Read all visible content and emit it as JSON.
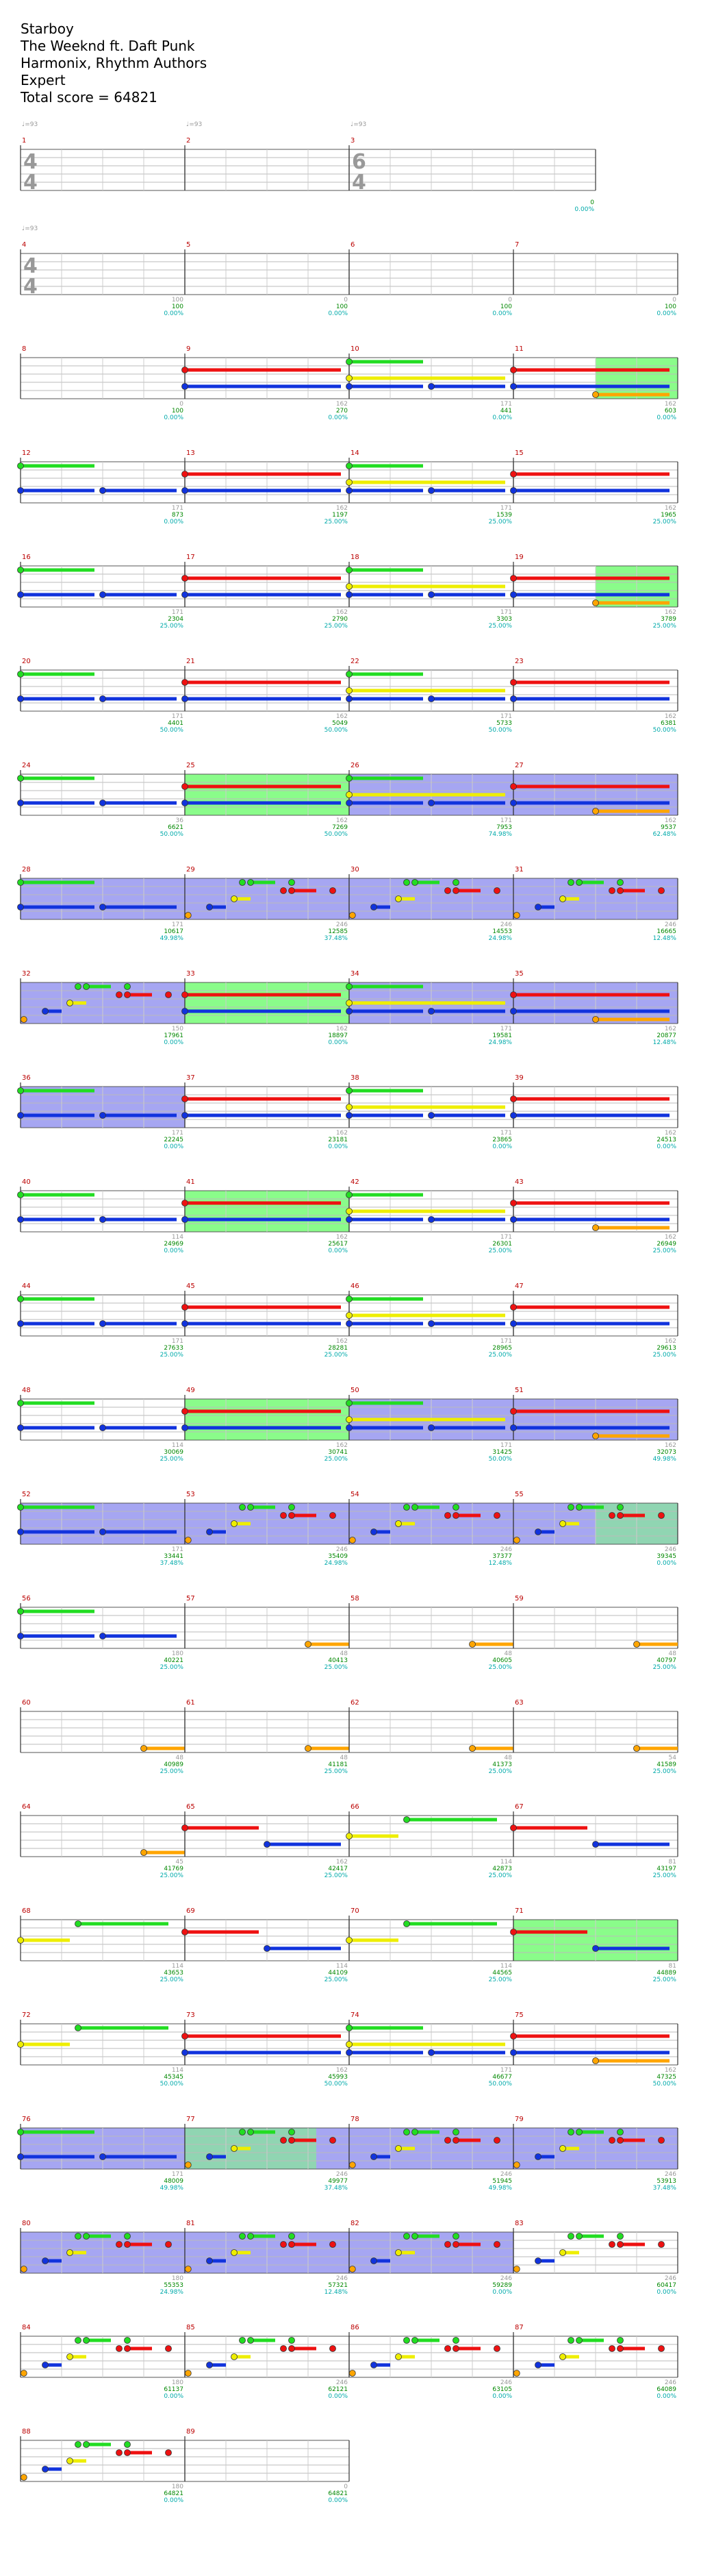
{
  "header": {
    "title": "Starboy",
    "artist": "The Weeknd ft. Daft Punk",
    "charter": "Harmonix, Rhythm Authors",
    "difficulty": "Expert",
    "total_score": "Total score = 64821"
  },
  "tempo_label": "♩=93",
  "tempo_measures": [
    1,
    2,
    3,
    4
  ],
  "time_signatures": [
    {
      "measure": 1,
      "top": "4",
      "bottom": "4"
    },
    {
      "measure": 3,
      "top": "6",
      "bottom": "4"
    },
    {
      "measure": 4,
      "top": "4",
      "bottom": "4"
    }
  ],
  "lane_colors": {
    "green": "#22dd22",
    "red": "#ee1111",
    "yellow": "#eeee00",
    "blue": "#1133dd",
    "orange": "#ffa500",
    "open": "#aa11aa",
    "star_power": "#7dfc7d",
    "solo": "#8888ee",
    "score": "#008800",
    "percent": "#00aaaa",
    "count": "#999999",
    "measure_number": "#bb0000"
  },
  "measures": [
    {
      "n": 1,
      "count": "",
      "score": "",
      "pct": ""
    },
    {
      "n": 2,
      "count": "",
      "score": "",
      "pct": ""
    },
    {
      "n": 3,
      "count": "",
      "score": "0",
      "pct": "0.00%"
    },
    {
      "n": 4,
      "count": "100",
      "score": "100",
      "pct": "0.00%"
    },
    {
      "n": 5,
      "count": "0",
      "score": "100",
      "pct": "0.00%"
    },
    {
      "n": 6,
      "count": "0",
      "score": "100",
      "pct": "0.00%"
    },
    {
      "n": 7,
      "count": "0",
      "score": "100",
      "pct": "0.00%"
    },
    {
      "n": 8,
      "count": "0",
      "score": "100",
      "pct": "0.00%"
    },
    {
      "n": 9,
      "count": "162",
      "score": "270",
      "pct": "0.00%"
    },
    {
      "n": 10,
      "count": "171",
      "score": "441",
      "pct": "0.00%"
    },
    {
      "n": 11,
      "count": "162",
      "score": "603",
      "pct": "0.00%"
    },
    {
      "n": 12,
      "count": "171",
      "score": "873",
      "pct": "0.00%"
    },
    {
      "n": 13,
      "count": "162",
      "score": "1197",
      "pct": "25.00%"
    },
    {
      "n": 14,
      "count": "171",
      "score": "1539",
      "pct": "25.00%"
    },
    {
      "n": 15,
      "count": "162",
      "score": "1965",
      "pct": "25.00%"
    },
    {
      "n": 16,
      "count": "171",
      "score": "2304",
      "pct": "25.00%"
    },
    {
      "n": 17,
      "count": "162",
      "score": "2790",
      "pct": "25.00%"
    },
    {
      "n": 18,
      "count": "171",
      "score": "3303",
      "pct": "25.00%"
    },
    {
      "n": 19,
      "count": "162",
      "score": "3789",
      "pct": "25.00%"
    },
    {
      "n": 20,
      "count": "171",
      "score": "4401",
      "pct": "50.00%"
    },
    {
      "n": 21,
      "count": "162",
      "score": "5049",
      "pct": "50.00%"
    },
    {
      "n": 22,
      "count": "171",
      "score": "5733",
      "pct": "50.00%"
    },
    {
      "n": 23,
      "count": "162",
      "score": "6381",
      "pct": "50.00%"
    },
    {
      "n": 24,
      "count": "36",
      "score": "6621",
      "pct": "50.00%"
    },
    {
      "n": 25,
      "count": "162",
      "score": "7269",
      "pct": "50.00%"
    },
    {
      "n": 26,
      "count": "171",
      "score": "7953",
      "pct": "74.98%"
    },
    {
      "n": 27,
      "count": "162",
      "score": "9537",
      "pct": "62.48%"
    },
    {
      "n": 28,
      "count": "171",
      "score": "10617",
      "pct": "49.98%"
    },
    {
      "n": 29,
      "count": "246",
      "score": "12585",
      "pct": "37.48%"
    },
    {
      "n": 30,
      "count": "246",
      "score": "14553",
      "pct": "24.98%"
    },
    {
      "n": 31,
      "count": "246",
      "score": "16665",
      "pct": "12.48%"
    },
    {
      "n": 32,
      "count": "150",
      "score": "17961",
      "pct": "0.00%"
    },
    {
      "n": 33,
      "count": "162",
      "score": "18897",
      "pct": "0.00%"
    },
    {
      "n": 34,
      "count": "171",
      "score": "19581",
      "pct": "24.98%"
    },
    {
      "n": 35,
      "count": "162",
      "score": "20877",
      "pct": "12.48%"
    },
    {
      "n": 36,
      "count": "171",
      "score": "22245",
      "pct": "0.00%"
    },
    {
      "n": 37,
      "count": "162",
      "score": "23181",
      "pct": "0.00%"
    },
    {
      "n": 38,
      "count": "171",
      "score": "23865",
      "pct": "0.00%"
    },
    {
      "n": 39,
      "count": "162",
      "score": "24513",
      "pct": "0.00%"
    },
    {
      "n": 40,
      "count": "114",
      "score": "24969",
      "pct": "0.00%"
    },
    {
      "n": 41,
      "count": "162",
      "score": "25617",
      "pct": "0.00%"
    },
    {
      "n": 42,
      "count": "171",
      "score": "26301",
      "pct": "25.00%"
    },
    {
      "n": 43,
      "count": "162",
      "score": "26949",
      "pct": "25.00%"
    },
    {
      "n": 44,
      "count": "171",
      "score": "27633",
      "pct": "25.00%"
    },
    {
      "n": 45,
      "count": "162",
      "score": "28281",
      "pct": "25.00%"
    },
    {
      "n": 46,
      "count": "171",
      "score": "28965",
      "pct": "25.00%"
    },
    {
      "n": 47,
      "count": "162",
      "score": "29613",
      "pct": "25.00%"
    },
    {
      "n": 48,
      "count": "114",
      "score": "30069",
      "pct": "25.00%"
    },
    {
      "n": 49,
      "count": "162",
      "score": "30741",
      "pct": "25.00%"
    },
    {
      "n": 50,
      "count": "171",
      "score": "31425",
      "pct": "50.00%"
    },
    {
      "n": 51,
      "count": "162",
      "score": "32073",
      "pct": "49.98%"
    },
    {
      "n": 52,
      "count": "171",
      "score": "33441",
      "pct": "37.48%"
    },
    {
      "n": 53,
      "count": "246",
      "score": "35409",
      "pct": "24.98%"
    },
    {
      "n": 54,
      "count": "246",
      "score": "37377",
      "pct": "12.48%"
    },
    {
      "n": 55,
      "count": "246",
      "score": "39345",
      "pct": "0.00%"
    },
    {
      "n": 56,
      "count": "180",
      "score": "40221",
      "pct": "25.00%"
    },
    {
      "n": 57,
      "count": "48",
      "score": "40413",
      "pct": "25.00%"
    },
    {
      "n": 58,
      "count": "48",
      "score": "40605",
      "pct": "25.00%"
    },
    {
      "n": 59,
      "count": "48",
      "score": "40797",
      "pct": "25.00%"
    },
    {
      "n": 60,
      "count": "48",
      "score": "40989",
      "pct": "25.00%"
    },
    {
      "n": 61,
      "count": "48",
      "score": "41181",
      "pct": "25.00%"
    },
    {
      "n": 62,
      "count": "48",
      "score": "41373",
      "pct": "25.00%"
    },
    {
      "n": 63,
      "count": "54",
      "score": "41589",
      "pct": "25.00%"
    },
    {
      "n": 64,
      "count": "45",
      "score": "41769",
      "pct": "25.00%"
    },
    {
      "n": 65,
      "count": "162",
      "score": "42417",
      "pct": "25.00%"
    },
    {
      "n": 66,
      "count": "114",
      "score": "42873",
      "pct": "25.00%"
    },
    {
      "n": 67,
      "count": "81",
      "score": "43197",
      "pct": "25.00%"
    },
    {
      "n": 68,
      "count": "114",
      "score": "43653",
      "pct": "25.00%"
    },
    {
      "n": 69,
      "count": "114",
      "score": "44109",
      "pct": "25.00%"
    },
    {
      "n": 70,
      "count": "114",
      "score": "44565",
      "pct": "25.00%"
    },
    {
      "n": 71,
      "count": "81",
      "score": "44889",
      "pct": "25.00%"
    },
    {
      "n": 72,
      "count": "114",
      "score": "45345",
      "pct": "50.00%"
    },
    {
      "n": 73,
      "count": "162",
      "score": "45993",
      "pct": "50.00%"
    },
    {
      "n": 74,
      "count": "171",
      "score": "46677",
      "pct": "50.00%"
    },
    {
      "n": 75,
      "count": "162",
      "score": "47325",
      "pct": "50.00%"
    },
    {
      "n": 76,
      "count": "171",
      "score": "48009",
      "pct": "49.98%"
    },
    {
      "n": 77,
      "count": "246",
      "score": "49977",
      "pct": "37.48%"
    },
    {
      "n": 78,
      "count": "246",
      "score": "51945",
      "pct": "49.98%"
    },
    {
      "n": 79,
      "count": "246",
      "score": "53913",
      "pct": "37.48%"
    },
    {
      "n": 80,
      "count": "180",
      "score": "55353",
      "pct": "24.98%"
    },
    {
      "n": 81,
      "count": "246",
      "score": "57321",
      "pct": "12.48%"
    },
    {
      "n": 82,
      "count": "246",
      "score": "59289",
      "pct": "0.00%"
    },
    {
      "n": 83,
      "count": "246",
      "score": "60417",
      "pct": "0.00%"
    },
    {
      "n": 84,
      "count": "180",
      "score": "61137",
      "pct": "0.00%"
    },
    {
      "n": 85,
      "count": "246",
      "score": "62121",
      "pct": "0.00%"
    },
    {
      "n": 86,
      "count": "246",
      "score": "63105",
      "pct": "0.00%"
    },
    {
      "n": 87,
      "count": "246",
      "score": "64089",
      "pct": "0.00%"
    },
    {
      "n": 88,
      "count": "180",
      "score": "64821",
      "pct": "0.00%"
    },
    {
      "n": 89,
      "count": "0",
      "score": "64821",
      "pct": "0.00%"
    }
  ]
}
